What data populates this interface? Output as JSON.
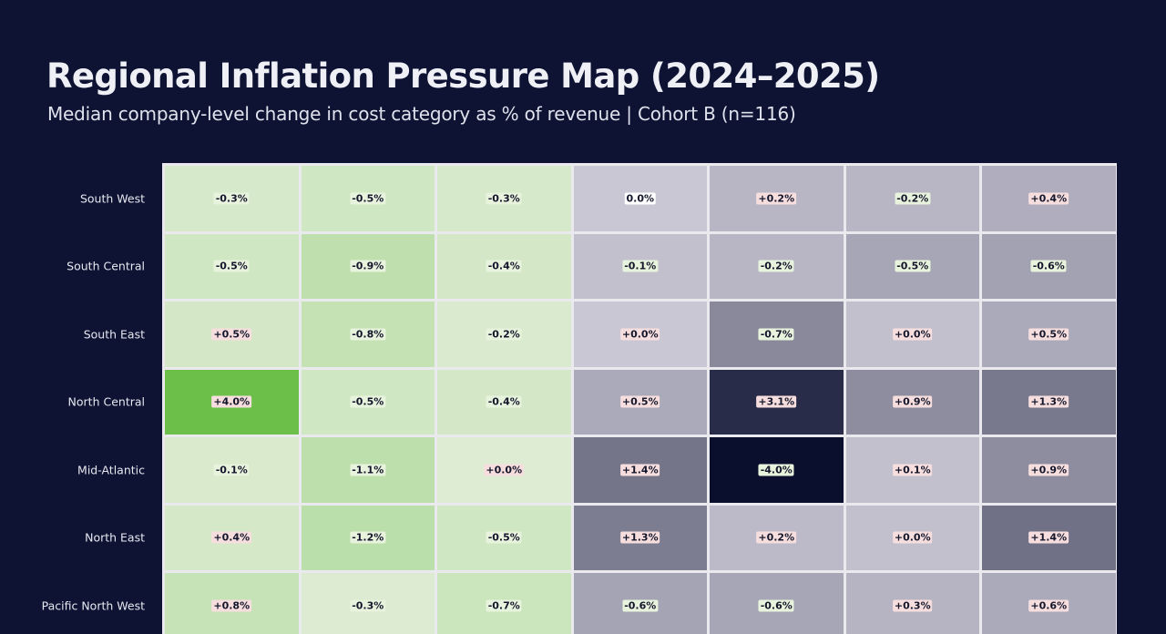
{
  "title": "Regional Inflation Pressure Map (2024–2025)",
  "subtitle": "Median company-level change in cost category as % of revenue | Cohort B (n=116)",
  "colors": {
    "background": "#0e1333",
    "green_low": "#e6efdd",
    "green_high": "#6cc04a",
    "purple_low": "#dedbe6",
    "purple_high": "#0b0f2e",
    "badge_negative": "#e7f3dc",
    "badge_positive": "#f7dede",
    "badge_zero": "#ffffff"
  },
  "chart_data": {
    "type": "heatmap",
    "title": "Regional Inflation Pressure Map (2024–2025)",
    "subtitle": "Median company-level change in cost category as % of revenue | Cohort B (n=116)",
    "rows": [
      "South West",
      "South Central",
      "South East",
      "North Central",
      "Mid-Atlantic",
      "North East",
      "Pacific North West"
    ],
    "columns": [
      "",
      "",
      "",
      "",
      "",
      "",
      ""
    ],
    "values": [
      [
        "-0.3%",
        "-0.5%",
        "-0.3%",
        "0.0%",
        "+0.2%",
        "-0.2%",
        "+0.4%"
      ],
      [
        "-0.5%",
        "-0.9%",
        "-0.4%",
        "-0.1%",
        "-0.2%",
        "-0.5%",
        "-0.6%"
      ],
      [
        "+0.5%",
        "-0.8%",
        "-0.2%",
        "+0.0%",
        "-0.7%",
        "+0.0%",
        "+0.5%"
      ],
      [
        "+4.0%",
        "-0.5%",
        "-0.4%",
        "+0.5%",
        "+3.1%",
        "+0.9%",
        "+1.3%"
      ],
      [
        "-0.1%",
        "-1.1%",
        "+0.0%",
        "+1.4%",
        "-4.0%",
        "+0.1%",
        "+0.9%"
      ],
      [
        "+0.4%",
        "-1.2%",
        "-0.5%",
        "+1.3%",
        "+0.2%",
        "+0.0%",
        "+1.4%"
      ],
      [
        "+0.8%",
        "-0.3%",
        "-0.7%",
        "-0.6%",
        "-0.6%",
        "+0.3%",
        "+0.6%"
      ]
    ],
    "intensity": [
      [
        0.13,
        0.18,
        0.13,
        0.1,
        0.18,
        0.18,
        0.22
      ],
      [
        0.18,
        0.32,
        0.15,
        0.13,
        0.18,
        0.26,
        0.28
      ],
      [
        0.15,
        0.28,
        0.1,
        0.1,
        0.4,
        0.13,
        0.24
      ],
      [
        1.0,
        0.18,
        0.15,
        0.24,
        0.86,
        0.38,
        0.48
      ],
      [
        0.11,
        0.34,
        0.07,
        0.5,
        1.0,
        0.13,
        0.38
      ],
      [
        0.14,
        0.35,
        0.18,
        0.46,
        0.16,
        0.13,
        0.52
      ],
      [
        0.26,
        0.08,
        0.22,
        0.27,
        0.26,
        0.19,
        0.24
      ]
    ],
    "color_groups": [
      "green",
      "green",
      "green",
      "purple",
      "purple",
      "purple",
      "purple"
    ],
    "grid": true,
    "legend": "none"
  }
}
